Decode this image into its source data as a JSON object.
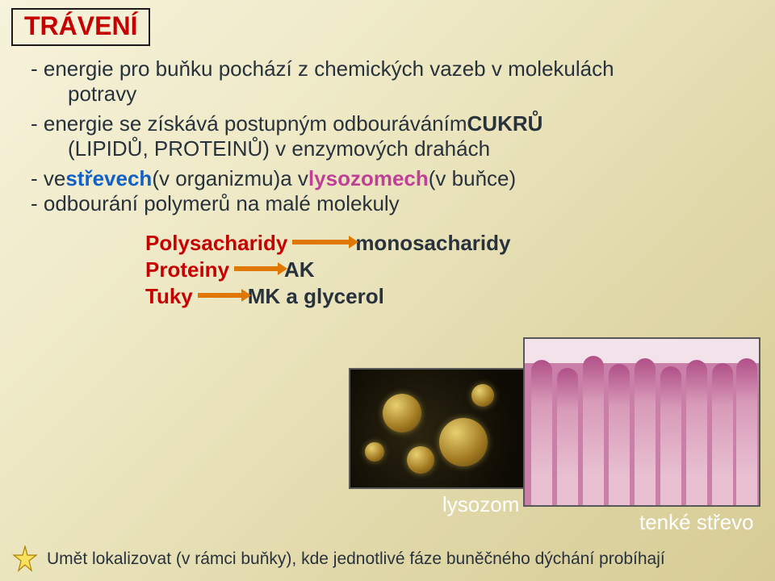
{
  "colors": {
    "title_text": "#c60000",
    "title_border": "#1a1a1a",
    "body_text": "#28323c",
    "strevech": "#1060c8",
    "lysozomech": "#c04098",
    "poly": "#c60000",
    "mono": "#28323c",
    "arrow": "#e07800",
    "label_white": "#ffffff",
    "footer_text": "#28323c",
    "star_fill": "#f8e060",
    "star_stroke": "#b08000"
  },
  "fonts": {
    "title_size": 32,
    "body_size": 26,
    "footer_size": 21
  },
  "title": "TRÁVENÍ",
  "lines": {
    "l1a": "- energie pro buňku pochází z chemických vazeb v molekulách",
    "l1b": "potravy",
    "l2a": "- energie se získává postupným odbouráváním ",
    "l2b": "CUKRŮ",
    "l3a": "(LIPIDŮ, PROTEINŮ) v enzymových drahách",
    "l4a": "- ve ",
    "l4b": "střevech ",
    "l4c": "(v organizmu)",
    "l4d": " a v ",
    "l4e": "lysozomech ",
    "l4f": "(v buňce)",
    "l5": "- odbourání polymerů na malé molekuly"
  },
  "poly": {
    "polysacharidy": "Polysacharidy",
    "monosacharidy": "monosacharidy",
    "proteiny": "Proteiny",
    "ak": "AK",
    "tuky": "Tuky",
    "mk": "MK a glycerol"
  },
  "arrows": {
    "w_poly": 72,
    "w_prot": 56,
    "w_tuky": 56
  },
  "labels": {
    "lysozom": "lysozom",
    "tissue": "tenké střevo"
  },
  "footer": "Umět lokalizovat (v rámci buňky), kde jednotlivé fáze buněčného dýchání probíhají"
}
